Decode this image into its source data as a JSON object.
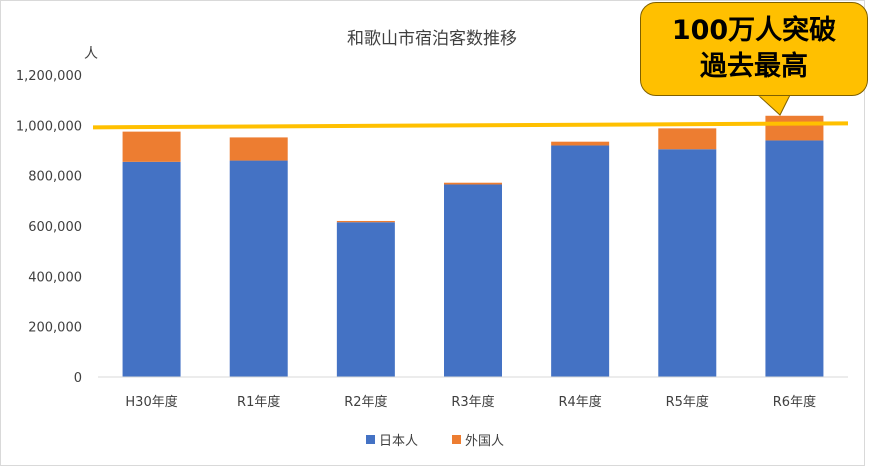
{
  "chart_data": {
    "type": "bar",
    "stacked": true,
    "title": "和歌山市宿泊客数推移",
    "ylabel": "人",
    "xlabel": "",
    "categories": [
      "H30年度",
      "R1年度",
      "R2年度",
      "R3年度",
      "R4年度",
      "R5年度",
      "R6年度"
    ],
    "series": [
      {
        "name": "日本人",
        "color": "#4472c4",
        "values": [
          855000,
          860000,
          615000,
          765000,
          920000,
          905000,
          940000
        ]
      },
      {
        "name": "外国人",
        "color": "#ed7d31",
        "values": [
          120000,
          92000,
          5000,
          7000,
          15000,
          83000,
          98000
        ]
      }
    ],
    "ylim": [
      0,
      1200000
    ],
    "yticks": [
      0,
      200000,
      400000,
      600000,
      800000,
      1000000,
      1200000
    ],
    "ytick_labels": [
      "0",
      "200,000",
      "400,000",
      "600,000",
      "800,000",
      "1,000,000",
      "1,200,000"
    ],
    "grid": false,
    "legend": "bottom",
    "reference_line": {
      "value": 1000000,
      "color": "#ffc000"
    },
    "annotation": {
      "lines": [
        "100万人突破",
        "過去最高"
      ],
      "color": "#ffc000"
    }
  }
}
